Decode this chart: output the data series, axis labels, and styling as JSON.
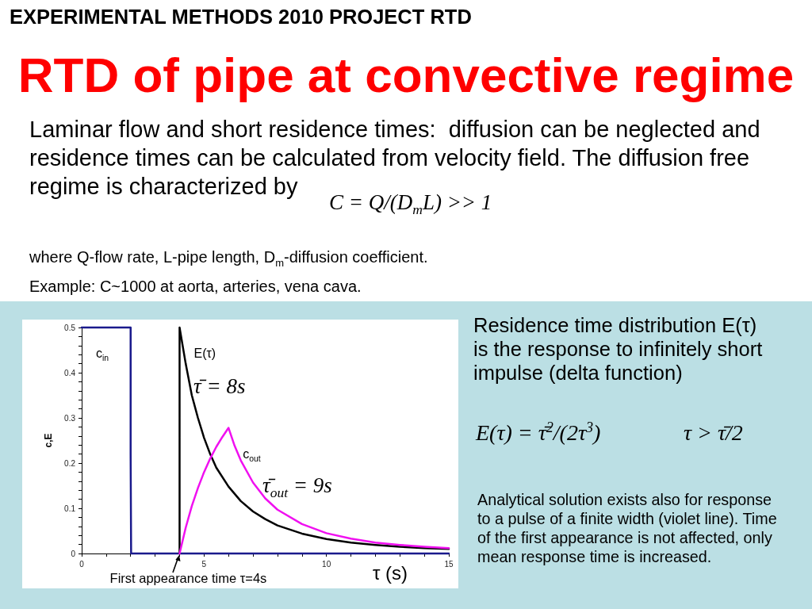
{
  "chart_data": {
    "type": "line",
    "title": "RTD of pipe at convective regime",
    "subtitle": "EXPERIMENTAL METHODS 2010 PROJECT RTD",
    "xlabel": "τ (s)",
    "ylabel": "c,E",
    "xlim": [
      0,
      15
    ],
    "xticks": [
      0,
      {
        "value": 1,
        "label": null
      },
      {
        "value": 2,
        "label": null
      },
      {
        "value": 3,
        "label": null
      },
      {
        "value": 4,
        "label": null
      },
      5,
      {
        "value": 6,
        "label": null
      },
      {
        "value": 7,
        "label": null
      },
      {
        "value": 8,
        "label": null
      },
      {
        "value": 9,
        "label": null
      },
      10,
      {
        "value": 11,
        "label": null
      },
      {
        "value": 12,
        "label": null
      },
      {
        "value": 13,
        "label": null
      },
      {
        "value": 14,
        "label": null
      },
      15
    ],
    "ylim": [
      0,
      0.5
    ],
    "yticks": [
      0,
      {
        "value": 0.02,
        "label": null
      },
      {
        "value": 0.04,
        "label": null
      },
      {
        "value": 0.06,
        "label": null
      },
      {
        "value": 0.08,
        "label": null
      },
      0.1,
      {
        "value": 0.12,
        "label": null
      },
      {
        "value": 0.14,
        "label": null
      },
      {
        "value": 0.16,
        "label": null
      },
      {
        "value": 0.18,
        "label": null
      },
      0.2,
      {
        "value": 0.22,
        "label": null
      },
      {
        "value": 0.24,
        "label": null
      },
      {
        "value": 0.26,
        "label": null
      },
      {
        "value": 0.28,
        "label": null
      },
      0.3,
      {
        "value": 0.32,
        "label": null
      },
      {
        "value": 0.34,
        "label": null
      },
      {
        "value": 0.36,
        "label": null
      },
      {
        "value": 0.38,
        "label": null
      },
      0.4,
      {
        "value": 0.42,
        "label": null
      },
      {
        "value": 0.44,
        "label": null
      },
      {
        "value": 0.46,
        "label": null
      },
      {
        "value": 0.48,
        "label": null
      },
      0.5
    ],
    "series": [
      {
        "name": "c$_{in}$",
        "color": "#1a1a8c",
        "x": [
          0,
          2,
          2,
          2.02,
          15
        ],
        "values": [
          0.5,
          0.5,
          0.22,
          0,
          0
        ]
      },
      {
        "name": "E(τ)",
        "color": "#000000",
        "x": [
          4,
          4,
          4.25,
          4.5,
          4.75,
          5,
          5.25,
          5.5,
          6,
          6.5,
          7,
          7.5,
          8,
          9,
          10,
          11,
          12,
          13,
          14,
          15
        ],
        "values": [
          0,
          0.5,
          0.42,
          0.35,
          0.3,
          0.256,
          0.22,
          0.19,
          0.148,
          0.116,
          0.093,
          0.076,
          0.062,
          0.044,
          0.032,
          0.024,
          0.019,
          0.015,
          0.012,
          0.01
        ]
      },
      {
        "name": "c$_{out}$",
        "color": "#f010f0",
        "x": [
          4,
          4.25,
          4.5,
          4.75,
          5,
          5.25,
          5.5,
          5.75,
          6,
          6.25,
          6.5,
          7,
          7.5,
          8,
          9,
          10,
          11,
          12,
          13,
          14,
          15
        ],
        "values": [
          0,
          0.057,
          0.105,
          0.145,
          0.18,
          0.21,
          0.236,
          0.258,
          0.278,
          0.238,
          0.206,
          0.157,
          0.122,
          0.097,
          0.065,
          0.045,
          0.033,
          0.024,
          0.019,
          0.015,
          0.012
        ]
      }
    ],
    "annotations": [
      "Laminar flow and short residence times:  diffusion can be neglected and residence times can be calculated from velocity field. The diffusion free regime is characterized by",
      "C = Q/(D$_{m}$L) >> 1",
      "where Q-flow rate, L-pipe length, D$_{m}$-diffusion coefficient.",
      "Example: C~1000 at aorta, arteries, vena cava.",
      "Residence time distribution E(τ) is the response to infinitely short impulse (delta function)",
      "E(τ) = τ̄$^{2}$/(2τ$^{3}$)",
      "τ > τ̄/2",
      "Analytical solution exists also for response to a pulse of a finite width (violet line). Time of the first appearance is not affected, only mean response time is increased.",
      "τ̄ = 8s",
      "τ̄$_{out}$ = 9s",
      {
        "text": "First appearance time τ=4s",
        "x": 4,
        "y": 0
      }
    ],
    "grid": false,
    "legend": false,
    "marker": "none",
    "line_style": "solid"
  }
}
